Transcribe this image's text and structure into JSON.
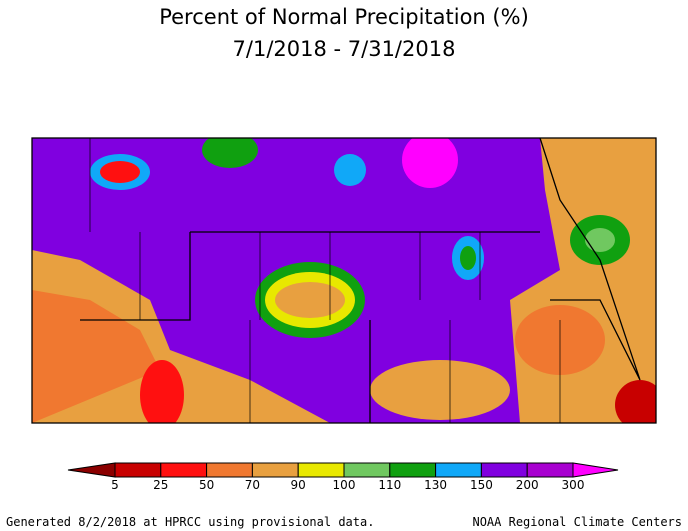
{
  "title": "Percent of Normal Precipitation (%)",
  "subtitle": "7/1/2018 - 7/31/2018",
  "legend": {
    "ticks": [
      5,
      25,
      50,
      70,
      90,
      100,
      110,
      130,
      150,
      200,
      300
    ],
    "colors": [
      "#8b0000",
      "#c80000",
      "#ff1010",
      "#f07830",
      "#e8a040",
      "#e8e800",
      "#70c860",
      "#10a010",
      "#10a8f8",
      "#8000e0",
      "#a800d0",
      "#ff00ff"
    ]
  },
  "footer": {
    "left": "Generated 8/2/2018 at HPRCC using provisional data.",
    "right": "NOAA Regional Climate Centers"
  }
}
